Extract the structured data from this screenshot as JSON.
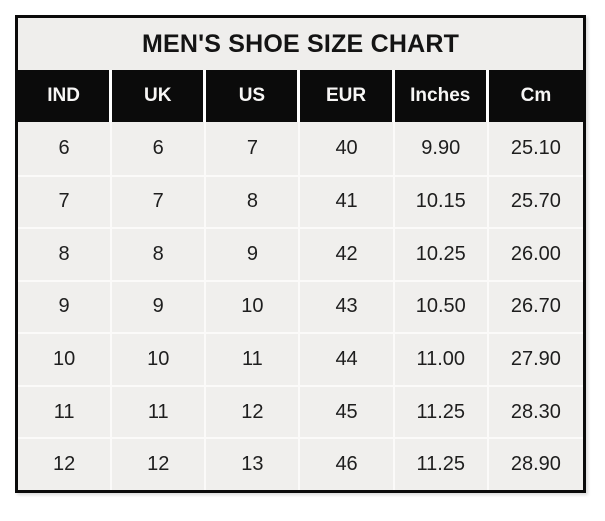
{
  "colors": {
    "page_background": "#ffffff",
    "title_background": "#efeeec",
    "header_background": "#0b0b0b",
    "header_text": "#f7f6f5",
    "cell_background": "#f0efed",
    "cell_text": "#1e1e1e",
    "grid_line": "#fbfaf9",
    "outer_border": "#0a0a0a"
  },
  "chart_data": {
    "type": "table",
    "title": "MEN'S SHOE SIZE CHART",
    "columns": [
      "IND",
      "UK",
      "US",
      "EUR",
      "Inches",
      "Cm"
    ],
    "rows": [
      [
        "6",
        "6",
        "7",
        "40",
        "9.90",
        "25.10"
      ],
      [
        "7",
        "7",
        "8",
        "41",
        "10.15",
        "25.70"
      ],
      [
        "8",
        "8",
        "9",
        "42",
        "10.25",
        "26.00"
      ],
      [
        "9",
        "9",
        "10",
        "43",
        "10.50",
        "26.70"
      ],
      [
        "10",
        "10",
        "11",
        "44",
        "11.00",
        "27.90"
      ],
      [
        "11",
        "11",
        "12",
        "45",
        "11.25",
        "28.30"
      ],
      [
        "12",
        "12",
        "13",
        "46",
        "11.25",
        "28.90"
      ]
    ]
  }
}
